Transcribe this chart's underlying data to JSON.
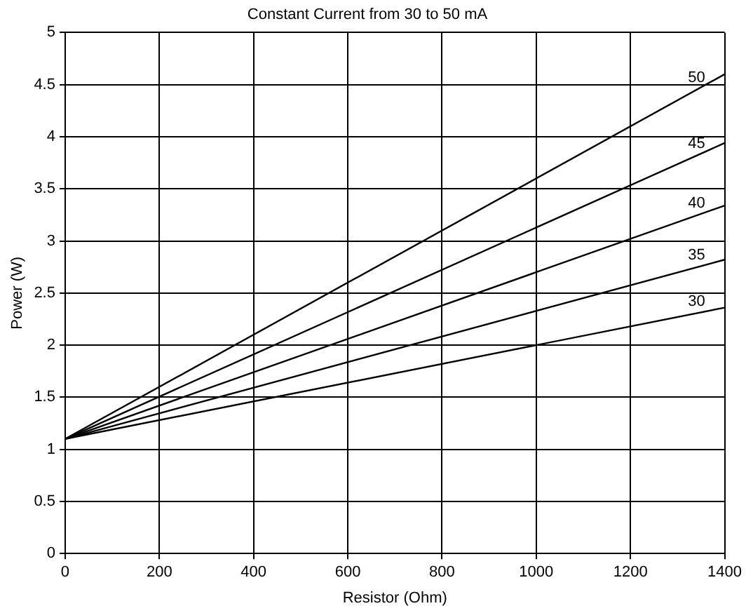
{
  "chart_data": {
    "type": "line",
    "title": "Constant Current from 30 to 50 mA",
    "xlabel": "Resistor (Ohm)",
    "ylabel": "Power (W)",
    "x": [
      0,
      1400
    ],
    "series": [
      {
        "name": "50",
        "color": "#000000",
        "values": [
          1.1,
          4.6
        ]
      },
      {
        "name": "45",
        "color": "#000000",
        "values": [
          1.1,
          3.94
        ]
      },
      {
        "name": "40",
        "color": "#000000",
        "values": [
          1.1,
          3.34
        ]
      },
      {
        "name": "35",
        "color": "#000000",
        "values": [
          1.1,
          2.82
        ]
      },
      {
        "name": "30",
        "color": "#000000",
        "values": [
          1.1,
          2.36
        ]
      }
    ],
    "xlim": [
      0,
      1400
    ],
    "xticks": [
      0,
      200,
      400,
      600,
      800,
      1000,
      1200,
      1400
    ],
    "ylim": [
      0,
      5
    ],
    "yticks": [
      0,
      0.5,
      1,
      1.5,
      2,
      2.5,
      3,
      3.5,
      4,
      4.5,
      5
    ],
    "grid": true,
    "legend": false,
    "marker": "none",
    "line_style": "solid"
  }
}
